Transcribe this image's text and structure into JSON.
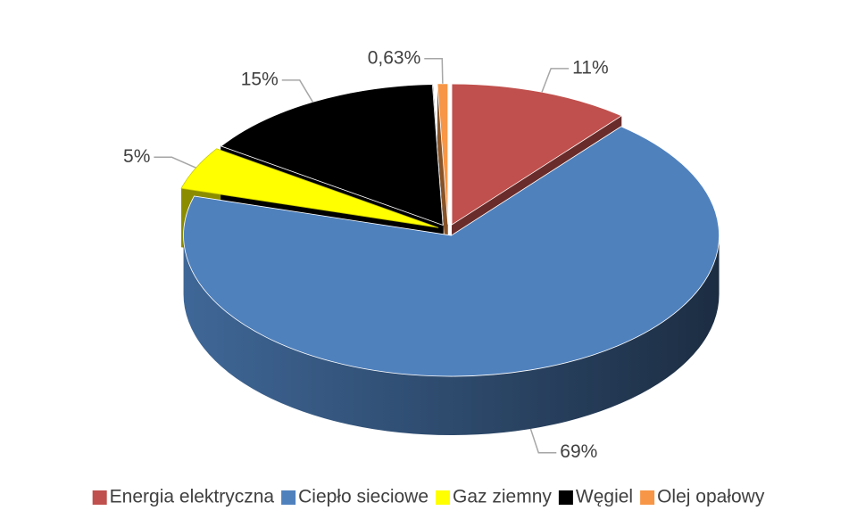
{
  "chart_data": {
    "type": "pie",
    "categories": [
      "Energia elektryczna",
      "Ciepło sieciowe",
      "Gaz ziemny",
      "Węgiel",
      "Olej opałowy"
    ],
    "values": [
      11,
      69,
      5,
      15,
      0.63
    ],
    "value_labels": [
      "11%",
      "69%",
      "5%",
      "15%",
      "0,63%"
    ],
    "colors": [
      "#c0504d",
      "#4f81bd",
      "#ffff00",
      "#000000",
      "#f79646"
    ],
    "legend": "bottom"
  }
}
